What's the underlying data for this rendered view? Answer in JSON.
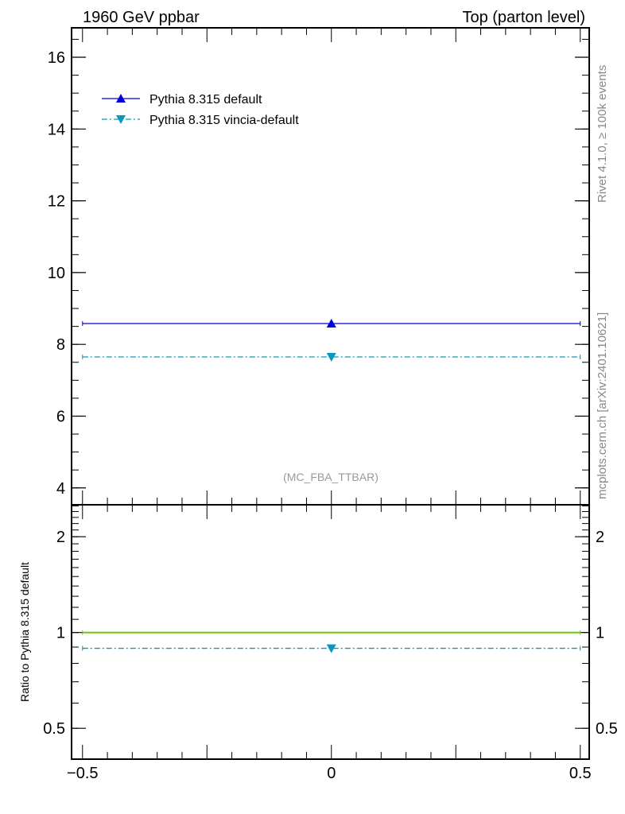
{
  "chart_data": [
    {
      "type": "line",
      "panel": "main",
      "title_left": "1960 GeV ppbar",
      "title_right": "Top (parton level)",
      "analysis_label": "(MC_FBA_TTBAR)",
      "side_label_top": "Rivet 4.1.0, ≥ 100k events",
      "side_label_bottom": "mcplots.cern.ch [arXiv:2401.10621]",
      "xlim": [
        -0.522,
        0.518
      ],
      "ylim": [
        3.53,
        16.82
      ],
      "yticks": [
        4,
        6,
        8,
        10,
        12,
        14,
        16
      ],
      "ytick_labels": [
        "4",
        "6",
        "8",
        "10",
        "12",
        "14",
        "16"
      ],
      "legend_position": "top-left",
      "series": [
        {
          "name": "Pythia 8.315 default",
          "color": "#0000dd",
          "style": "solid",
          "marker": "triangle-up",
          "x": [
            0
          ],
          "xerr": [
            0.5
          ],
          "values": [
            8.58
          ]
        },
        {
          "name": "Pythia 8.315 vincia-default",
          "color": "#0a96bf",
          "style": "dashdot",
          "marker": "triangle-down",
          "x": [
            0
          ],
          "xerr": [
            0.5
          ],
          "values": [
            7.65
          ]
        }
      ]
    },
    {
      "type": "line",
      "panel": "ratio",
      "ylabel": "Ratio to Pythia 8.315 default",
      "yscale": "log",
      "xlim": [
        -0.522,
        0.518
      ],
      "ylim": [
        0.4,
        2.52
      ],
      "yticks": [
        0.5,
        1,
        2
      ],
      "ytick_labels": [
        "0.5",
        "1",
        "2"
      ],
      "xticks": [
        -0.5,
        0,
        0.5
      ],
      "xtick_labels": [
        "−0.5",
        "0",
        "0.5"
      ],
      "series": [
        {
          "name": "Pythia 8.315 default",
          "color": "#66cc00",
          "style": "solid",
          "marker": "none",
          "x": [
            0
          ],
          "xerr": [
            0.5
          ],
          "values": [
            1.0
          ]
        },
        {
          "name": "Pythia 8.315 vincia-default",
          "color": "#0a96bf",
          "style": "dashdot",
          "marker": "triangle-down",
          "x": [
            0
          ],
          "xerr": [
            0.5
          ],
          "values": [
            0.892
          ]
        }
      ]
    }
  ]
}
